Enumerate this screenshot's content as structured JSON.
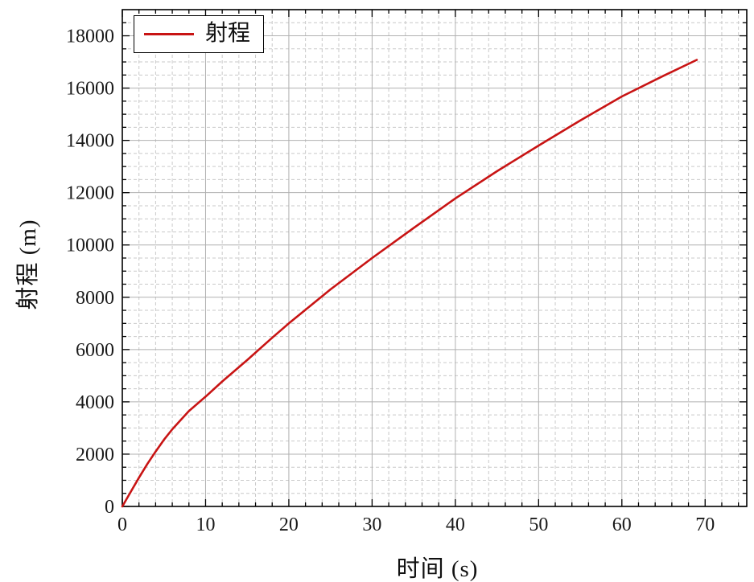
{
  "chart_data": {
    "type": "line",
    "title": "",
    "xlabel": "时间 (s)",
    "ylabel": "射程 (m)",
    "xlim": [
      0,
      75
    ],
    "ylim": [
      0,
      19000
    ],
    "x_ticks": [
      0,
      10,
      20,
      30,
      40,
      50,
      60,
      70
    ],
    "y_ticks": [
      0,
      2000,
      4000,
      6000,
      8000,
      10000,
      12000,
      14000,
      16000,
      18000
    ],
    "x_minor_step": 2,
    "y_minor_step": 500,
    "grid": "major-solid-minor-dashed",
    "legend": {
      "position": "top-left",
      "entries": [
        {
          "label": "射程",
          "color": "#c81414"
        }
      ]
    },
    "series": [
      {
        "name": "射程",
        "color": "#c81414",
        "x": [
          0,
          1,
          2,
          3,
          4,
          5,
          6,
          8,
          10,
          12,
          15,
          18,
          20,
          25,
          30,
          35,
          40,
          45,
          50,
          55,
          60,
          65,
          69
        ],
        "y": [
          0,
          550,
          1100,
          1620,
          2100,
          2550,
          2950,
          3650,
          4200,
          4780,
          5600,
          6450,
          7000,
          8300,
          9500,
          10650,
          11780,
          12820,
          13800,
          14760,
          15680,
          16470,
          17080
        ]
      }
    ]
  },
  "colors": {
    "frame": "#000000",
    "major_grid": "#b0b0b0",
    "minor_grid": "#c9c9c9",
    "tick_label": "#1a1a1a"
  },
  "layout_text": {
    "legend_label": "射程",
    "x_axis_title": "时间 (s)",
    "y_axis_title": "射程 (m)"
  }
}
